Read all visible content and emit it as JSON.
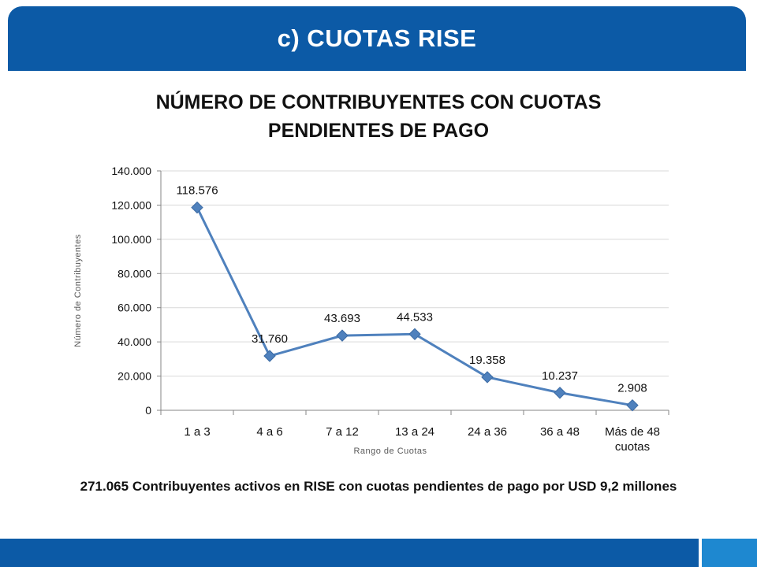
{
  "slide": {
    "header_title": "c) CUOTAS RISE",
    "summary": "271.065 Contribuyentes activos en RISE con cuotas pendientes de pago por USD 9,2 millones"
  },
  "colors": {
    "header": "#0c5aa6",
    "footer_accent": "#1e88d0",
    "series": "#4f81bd"
  },
  "chart_data": {
    "type": "line",
    "title_line1": "NÚMERO DE CONTRIBUYENTES CON CUOTAS",
    "title_line2": "PENDIENTES DE PAGO",
    "xlabel": "Rango de Cuotas",
    "ylabel": "Número de Contribuyentes",
    "categories": [
      "1 a 3",
      "4 a 6",
      "7 a 12",
      "13 a 24",
      "24 a 36",
      "36 a 48",
      "Más de 48 cuotas"
    ],
    "category_lines": [
      [
        "1 a 3"
      ],
      [
        "4 a 6"
      ],
      [
        "7 a 12"
      ],
      [
        "13 a 24"
      ],
      [
        "24 a 36"
      ],
      [
        "36 a 48"
      ],
      [
        "Más de 48",
        "cuotas"
      ]
    ],
    "values": [
      118576,
      31760,
      43693,
      44533,
      19358,
      10237,
      2908
    ],
    "value_labels": [
      "118.576",
      "31.760",
      "43.693",
      "44.533",
      "19.358",
      "10.237",
      "2.908"
    ],
    "ylim": [
      0,
      140000
    ],
    "yticks": [
      0,
      20000,
      40000,
      60000,
      80000,
      100000,
      120000,
      140000
    ],
    "ytick_labels": [
      "0",
      "20.000",
      "40.000",
      "60.000",
      "80.000",
      "100.000",
      "120.000",
      "140.000"
    ],
    "grid": true
  }
}
